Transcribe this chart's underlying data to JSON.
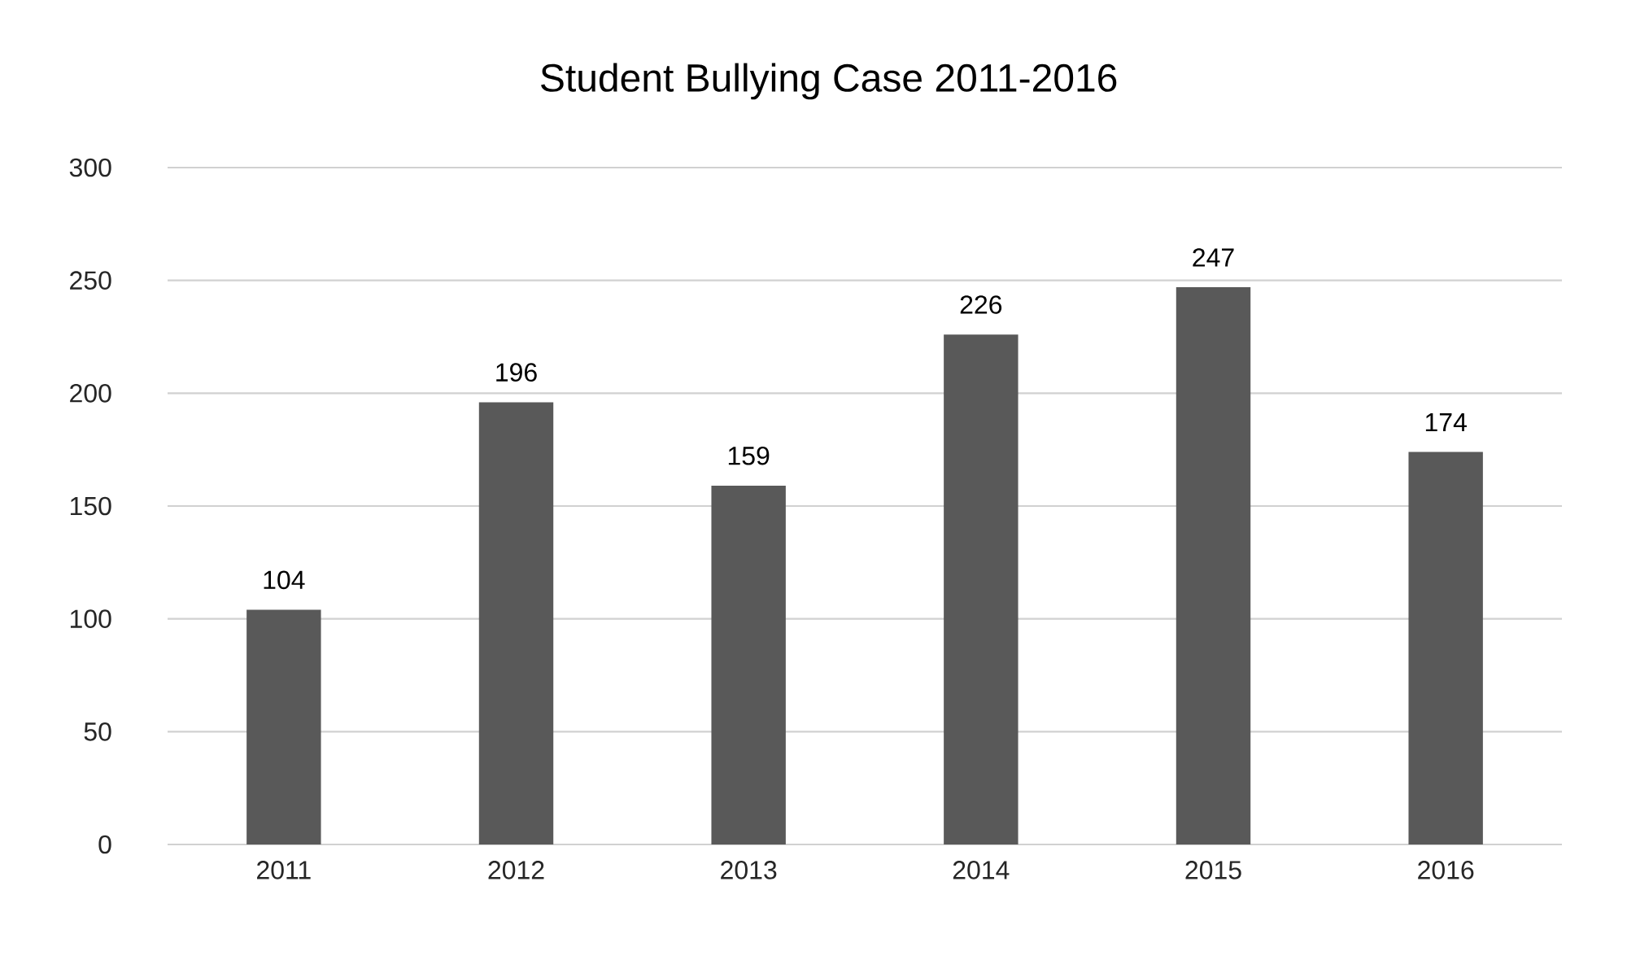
{
  "chart_data": {
    "type": "bar",
    "title": "Student Bullying Case 2011-2016",
    "categories": [
      "2011",
      "2012",
      "2013",
      "2014",
      "2015",
      "2016"
    ],
    "values": [
      104,
      196,
      159,
      226,
      247,
      174
    ],
    "color": "#595959",
    "ylim": [
      0,
      300
    ],
    "yticks": [
      0,
      50,
      100,
      150,
      200,
      250,
      300
    ],
    "grid": "y",
    "data_labels": true
  }
}
